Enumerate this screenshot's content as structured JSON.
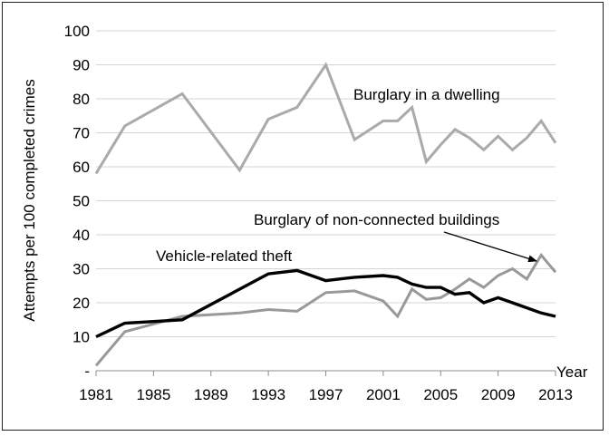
{
  "chart_data": {
    "type": "line",
    "title": "",
    "xlabel": "Year",
    "ylabel": "Attempts per 100 completed crimes",
    "ylim": [
      0,
      100
    ],
    "y_ticks": [
      "-",
      "10",
      "20",
      "30",
      "40",
      "50",
      "60",
      "70",
      "80",
      "90",
      "100"
    ],
    "x_ticks": [
      "1981",
      "1985",
      "1989",
      "1993",
      "1997",
      "2001",
      "2005",
      "2009",
      "2013"
    ],
    "xlim": [
      1981,
      2013
    ],
    "grid": "horizontal",
    "series": [
      {
        "name": "Burglary in a dwelling",
        "color": "#aaaaaa",
        "x": [
          1981,
          1983,
          1987,
          1991,
          1993,
          1995,
          1997,
          1999,
          2001,
          2002,
          2003,
          2004,
          2005,
          2006,
          2007,
          2008,
          2009,
          2010,
          2011,
          2012,
          2013
        ],
        "y": [
          58,
          72,
          81.5,
          59,
          74,
          77.5,
          90,
          68,
          73.5,
          73.5,
          77.5,
          61.5,
          66.5,
          71,
          68.5,
          65,
          69,
          65,
          68.5,
          73.5,
          67
        ]
      },
      {
        "name": "Burglary of non-connected buildings",
        "color": "#999999",
        "x": [
          1981,
          1983,
          1987,
          1991,
          1993,
          1995,
          1997,
          1999,
          2001,
          2002,
          2003,
          2004,
          2005,
          2006,
          2007,
          2008,
          2009,
          2010,
          2011,
          2012,
          2013
        ],
        "y": [
          1.5,
          11.5,
          16,
          17,
          18,
          17.5,
          23,
          23.5,
          20.5,
          16,
          24,
          21,
          21.5,
          24,
          27,
          24.5,
          28,
          30,
          27,
          34,
          29
        ]
      },
      {
        "name": "Vehicle-related theft",
        "color": "#000000",
        "x": [
          1981,
          1983,
          1987,
          1991,
          1993,
          1995,
          1997,
          1999,
          2001,
          2002,
          2003,
          2004,
          2005,
          2006,
          2007,
          2008,
          2009,
          2010,
          2011,
          2012,
          2013
        ],
        "y": [
          10,
          14,
          15,
          24,
          28.5,
          29.5,
          26.5,
          27.5,
          28,
          27.5,
          25.5,
          24.5,
          24.5,
          22.5,
          23,
          20,
          21.5,
          20,
          18.5,
          17,
          16
        ]
      }
    ],
    "annotations": [
      {
        "text": "Burglary in a dwelling",
        "series": 0
      },
      {
        "text": "Burglary of non-connected buildings",
        "series": 1,
        "arrow": true
      },
      {
        "text": "Vehicle-related theft",
        "series": 2
      }
    ]
  }
}
